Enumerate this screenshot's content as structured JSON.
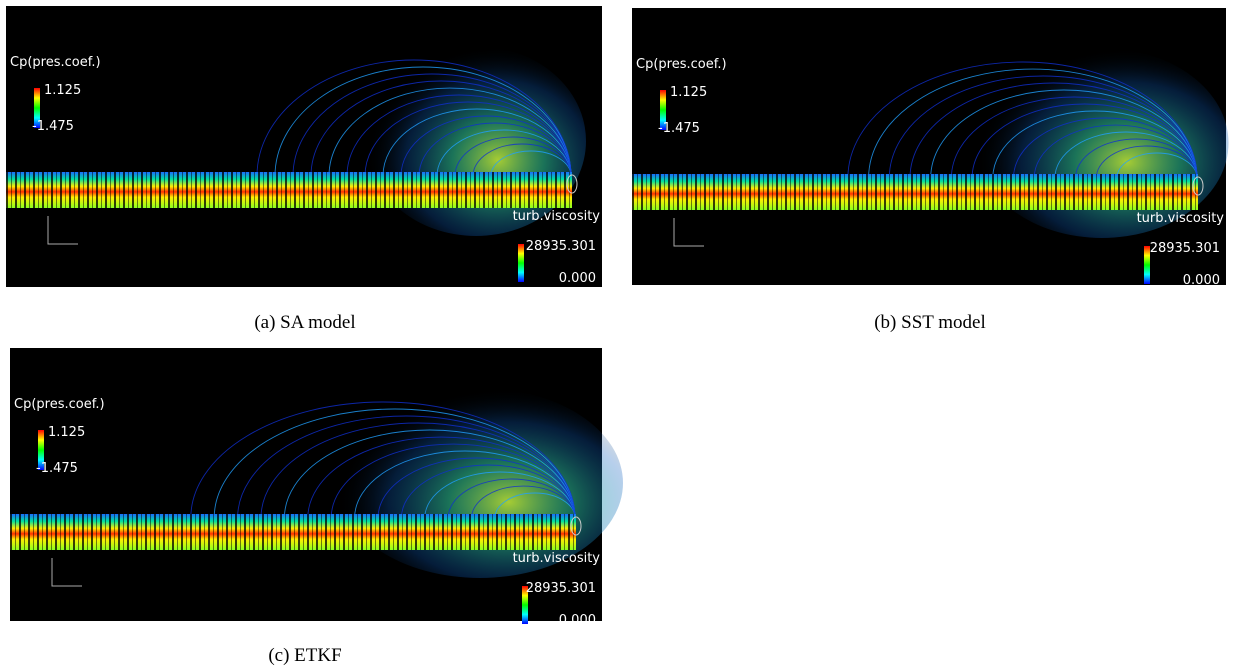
{
  "panels": [
    {
      "caption": "(a) SA model",
      "cp_title": "Cp(pres.coef.)",
      "cp_max": "1.125",
      "cp_min": "-1.475",
      "tv_title": "turb.viscosity",
      "tv_max": "28935.301",
      "tv_min": "0.000"
    },
    {
      "caption": "(b) SST model",
      "cp_title": "Cp(pres.coef.)",
      "cp_max": "1.125",
      "cp_min": "-1.475",
      "tv_title": "turb.viscosity",
      "tv_max": "28935.301",
      "tv_min": "0.000"
    },
    {
      "caption": "(c) ETKF",
      "cp_title": "Cp(pres.coef.)",
      "cp_max": "1.125",
      "cp_min": "-1.475",
      "tv_title": "turb.viscosity",
      "tv_max": "28935.301",
      "tv_min": "0.000"
    }
  ]
}
